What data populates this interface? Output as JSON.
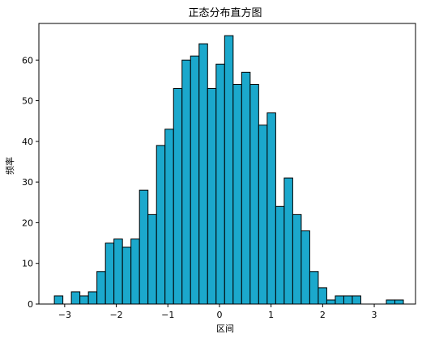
{
  "chart_data": {
    "type": "bar",
    "title": "正态分布直方图",
    "xlabel": "区间",
    "ylabel": "频率",
    "xlim": [
      -3.5,
      3.8
    ],
    "ylim": [
      0,
      69
    ],
    "xticks": [
      -3,
      -2,
      -1,
      0,
      1,
      2,
      3
    ],
    "yticks": [
      0,
      10,
      20,
      30,
      40,
      50,
      60
    ],
    "bar_color": "#1ba8cc",
    "edge_color": "#000000",
    "bin_width": 0.165,
    "bins": [
      {
        "x0": -3.2,
        "count": 2
      },
      {
        "x0": -3.035,
        "count": 0
      },
      {
        "x0": -2.87,
        "count": 3
      },
      {
        "x0": -2.705,
        "count": 2
      },
      {
        "x0": -2.54,
        "count": 3
      },
      {
        "x0": -2.375,
        "count": 8
      },
      {
        "x0": -2.21,
        "count": 15
      },
      {
        "x0": -2.045,
        "count": 16
      },
      {
        "x0": -1.88,
        "count": 14
      },
      {
        "x0": -1.715,
        "count": 16
      },
      {
        "x0": -1.55,
        "count": 28
      },
      {
        "x0": -1.385,
        "count": 22
      },
      {
        "x0": -1.22,
        "count": 39
      },
      {
        "x0": -1.055,
        "count": 43
      },
      {
        "x0": -0.89,
        "count": 53
      },
      {
        "x0": -0.725,
        "count": 60
      },
      {
        "x0": -0.56,
        "count": 61
      },
      {
        "x0": -0.395,
        "count": 64
      },
      {
        "x0": -0.23,
        "count": 53
      },
      {
        "x0": -0.065,
        "count": 59
      },
      {
        "x0": 0.1,
        "count": 66
      },
      {
        "x0": 0.265,
        "count": 54
      },
      {
        "x0": 0.43,
        "count": 57
      },
      {
        "x0": 0.595,
        "count": 54
      },
      {
        "x0": 0.76,
        "count": 44
      },
      {
        "x0": 0.925,
        "count": 47
      },
      {
        "x0": 1.09,
        "count": 24
      },
      {
        "x0": 1.255,
        "count": 31
      },
      {
        "x0": 1.42,
        "count": 22
      },
      {
        "x0": 1.585,
        "count": 18
      },
      {
        "x0": 1.75,
        "count": 8
      },
      {
        "x0": 1.915,
        "count": 4
      },
      {
        "x0": 2.08,
        "count": 1
      },
      {
        "x0": 2.245,
        "count": 2
      },
      {
        "x0": 2.41,
        "count": 2
      },
      {
        "x0": 2.575,
        "count": 2
      },
      {
        "x0": 2.74,
        "count": 0
      },
      {
        "x0": 2.905,
        "count": 0
      },
      {
        "x0": 3.07,
        "count": 0
      },
      {
        "x0": 3.235,
        "count": 1
      },
      {
        "x0": 3.4,
        "count": 1
      }
    ]
  }
}
